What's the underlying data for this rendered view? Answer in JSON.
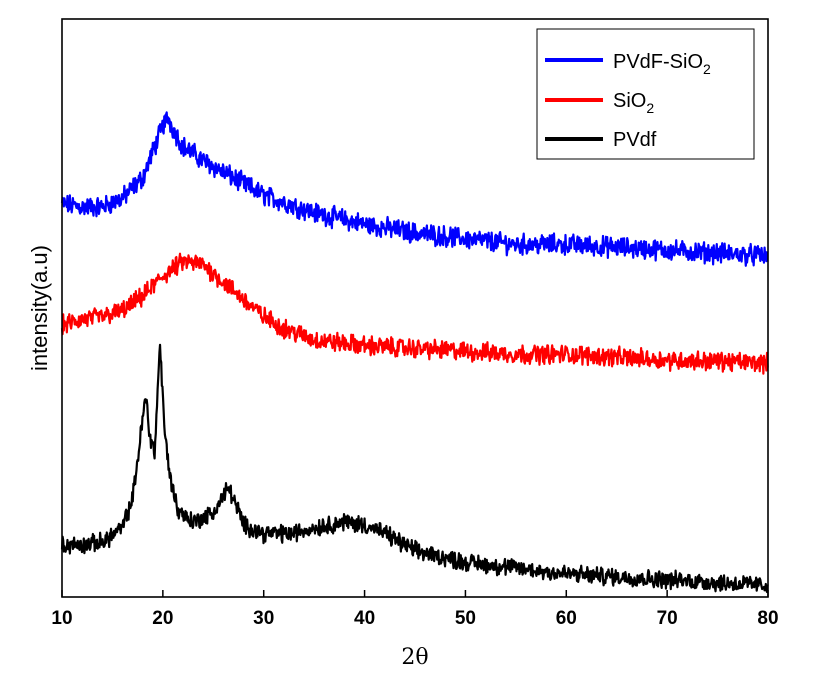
{
  "chart_data": {
    "type": "line",
    "title": "",
    "xlabel": "2θ",
    "ylabel": "intensity(a.u)",
    "xlim": [
      10,
      80
    ],
    "ylim": [
      0,
      100
    ],
    "xticks": [
      10,
      20,
      30,
      40,
      50,
      60,
      70,
      80
    ],
    "yticks_shown": false,
    "grid": false,
    "legend_position": "top-right",
    "series": [
      {
        "name": "PVdF-SiO",
        "name_subscript": "2",
        "color": "#0000ff",
        "baseline": 59,
        "noise": 1.4,
        "profile": [
          [
            10,
            68
          ],
          [
            12,
            67.5
          ],
          [
            14,
            67.5
          ],
          [
            16,
            69
          ],
          [
            18,
            72.5
          ],
          [
            19,
            77
          ],
          [
            20,
            81.5
          ],
          [
            20.5,
            83
          ],
          [
            21,
            81
          ],
          [
            22,
            78
          ],
          [
            24,
            75.5
          ],
          [
            26,
            73.5
          ],
          [
            28,
            71.5
          ],
          [
            30,
            69.5
          ],
          [
            35,
            66.5
          ],
          [
            40,
            64.5
          ],
          [
            45,
            63
          ],
          [
            50,
            62
          ],
          [
            55,
            61
          ],
          [
            60,
            61
          ],
          [
            65,
            60.5
          ],
          [
            70,
            60
          ],
          [
            75,
            59.5
          ],
          [
            80,
            59
          ]
        ]
      },
      {
        "name": "SiO",
        "name_subscript": "2",
        "color": "#ff0000",
        "baseline": 40,
        "noise": 1.3,
        "profile": [
          [
            10,
            47
          ],
          [
            12,
            48
          ],
          [
            14,
            48.5
          ],
          [
            16,
            49.5
          ],
          [
            18,
            52
          ],
          [
            20,
            55.5
          ],
          [
            22,
            58
          ],
          [
            24,
            57.5
          ],
          [
            26,
            54.5
          ],
          [
            28,
            51.5
          ],
          [
            30,
            48.5
          ],
          [
            32,
            46.5
          ],
          [
            35,
            44.5
          ],
          [
            40,
            43.5
          ],
          [
            45,
            43
          ],
          [
            50,
            42.5
          ],
          [
            55,
            42
          ],
          [
            60,
            42
          ],
          [
            65,
            41.5
          ],
          [
            70,
            41
          ],
          [
            75,
            40.8
          ],
          [
            80,
            40.5
          ]
        ]
      },
      {
        "name": "PVdf",
        "name_subscript": "",
        "color": "#000000",
        "baseline": 2,
        "noise": 1.2,
        "profile": [
          [
            10,
            9
          ],
          [
            12,
            9
          ],
          [
            14,
            9.5
          ],
          [
            16,
            12
          ],
          [
            17,
            17
          ],
          [
            17.8,
            28
          ],
          [
            18.3,
            35
          ],
          [
            18.7,
            28
          ],
          [
            19.2,
            25
          ],
          [
            19.7,
            44
          ],
          [
            20.2,
            28
          ],
          [
            20.8,
            20
          ],
          [
            21.5,
            15
          ],
          [
            23,
            13
          ],
          [
            25,
            14.5
          ],
          [
            26.5,
            19
          ],
          [
            27,
            17
          ],
          [
            28,
            12.5
          ],
          [
            30,
            11
          ],
          [
            33,
            11
          ],
          [
            35,
            12
          ],
          [
            38,
            13
          ],
          [
            40,
            12.5
          ],
          [
            42,
            11
          ],
          [
            45,
            8
          ],
          [
            50,
            6
          ],
          [
            55,
            5
          ],
          [
            60,
            4
          ],
          [
            65,
            3.5
          ],
          [
            70,
            3
          ],
          [
            75,
            2.5
          ],
          [
            80,
            2
          ]
        ]
      }
    ]
  }
}
